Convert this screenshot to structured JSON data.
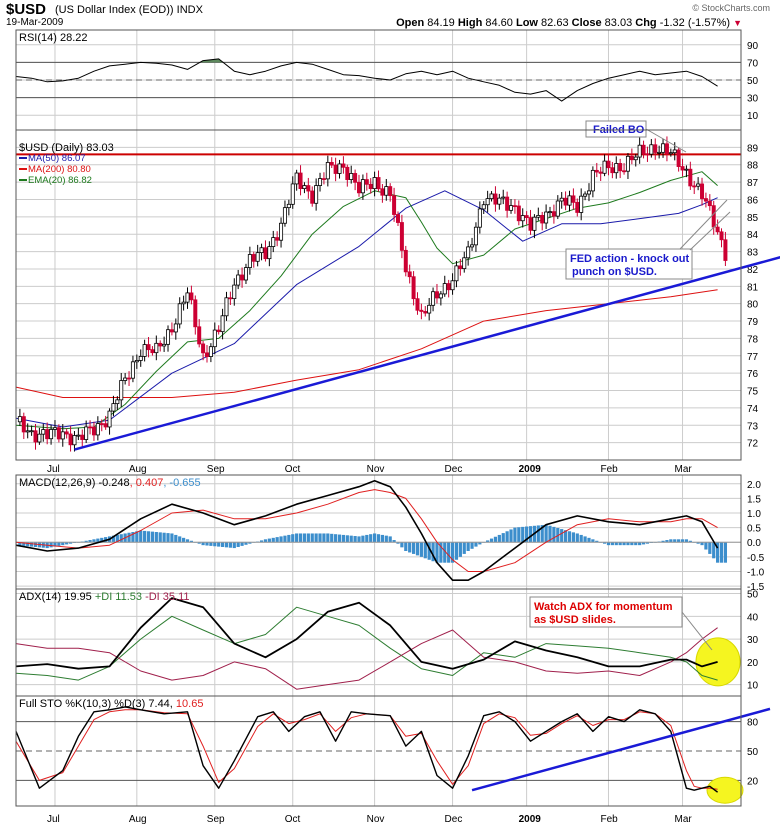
{
  "header": {
    "symbol": "$USD",
    "description": "(US Dollar Index (EOD))",
    "exchange": "INDX",
    "date": "19-Mar-2009",
    "credit": "© StockCharts.com",
    "open_label": "Open",
    "open": "84.19",
    "high_label": "High",
    "high": "84.60",
    "low_label": "Low",
    "low": "82.63",
    "close_label": "Close",
    "close": "83.03",
    "chg_label": "Chg",
    "chg": "-1.32 (-1.57%)"
  },
  "colors": {
    "price_up": "#000000",
    "price_down": "#cc0033",
    "ma50": "#1a1aaa",
    "ma200": "#dd1111",
    "ema20": "#1e7a1e",
    "trendline": "#1a1ad6",
    "resistance": "#cc0000",
    "grid": "#cccccc",
    "histogram": "#3c8ecc",
    "plus_di": "#2e7d32",
    "minus_di": "#a0204c",
    "highlight": "#f5f520",
    "rsi_fill": "#5e8a5e"
  },
  "chart_data": [
    {
      "type": "line",
      "name": "RSI",
      "title": "RSI(14) 28.22",
      "ylim": [
        0,
        100
      ],
      "ticks": [
        90,
        70,
        50,
        30,
        10
      ],
      "guides": [
        70,
        30
      ],
      "x": [
        0,
        4,
        8,
        12,
        16,
        20,
        24,
        28,
        32,
        36,
        40,
        44,
        48,
        52,
        56,
        60,
        64,
        68,
        72,
        76,
        80,
        84,
        88,
        92,
        96,
        100,
        104,
        108,
        112,
        116,
        120,
        124,
        128,
        132,
        136,
        140,
        144,
        148,
        152,
        156,
        160,
        164,
        168,
        172,
        176,
        180
      ],
      "values": [
        54,
        52,
        48,
        49,
        52,
        60,
        66,
        68,
        70,
        69,
        67,
        62,
        72,
        74,
        60,
        56,
        60,
        66,
        70,
        68,
        62,
        56,
        55,
        52,
        50,
        57,
        60,
        56,
        60,
        52,
        48,
        44,
        36,
        34,
        38,
        26,
        38,
        46,
        52,
        56,
        60,
        56,
        58,
        60,
        54,
        43
      ],
      "last": 28
    },
    {
      "type": "candlestick",
      "name": "Price",
      "title": "$USD (Daily) 83.03",
      "ylim": [
        71,
        90
      ],
      "ticks": [
        72,
        73,
        74,
        75,
        76,
        77,
        78,
        79,
        80,
        81,
        82,
        83,
        84,
        85,
        86,
        87,
        88,
        89
      ],
      "x_labels": [
        {
          "t": "Jul",
          "x": 10
        },
        {
          "t": "Aug",
          "x": 31
        },
        {
          "t": "Sep",
          "x": 51
        },
        {
          "t": "Oct",
          "x": 71
        },
        {
          "t": "Nov",
          "x": 92
        },
        {
          "t": "Dec",
          "x": 112
        },
        {
          "t": "2009",
          "x": 131
        },
        {
          "t": "Feb",
          "x": 152
        },
        {
          "t": "Mar",
          "x": 171
        }
      ],
      "close_x": [
        0,
        4,
        8,
        12,
        16,
        20,
        24,
        28,
        32,
        36,
        40,
        44,
        48,
        52,
        56,
        60,
        64,
        68,
        72,
        76,
        80,
        84,
        88,
        92,
        96,
        100,
        104,
        108,
        112,
        116,
        120,
        124,
        128,
        132,
        136,
        140,
        144,
        148,
        152,
        156,
        160,
        164,
        168,
        172,
        176,
        180,
        182
      ],
      "close": [
        73.2,
        72.6,
        72.4,
        72.6,
        72.2,
        72.8,
        73.6,
        75.6,
        77.4,
        77.2,
        78.7,
        80.6,
        77.0,
        78.5,
        81.2,
        82.5,
        82.9,
        84.6,
        87.2,
        86.3,
        87.7,
        88.0,
        86.5,
        87.1,
        86.2,
        82.1,
        79.2,
        80.5,
        81.5,
        82.8,
        86.2,
        85.8,
        85.6,
        84.4,
        85.2,
        85.9,
        85.6,
        87.4,
        87.8,
        88.0,
        88.6,
        89.1,
        88.6,
        87.6,
        86.2,
        84.2,
        83.0
      ],
      "ma50_x": [
        0,
        12,
        24,
        40,
        56,
        72,
        88,
        100,
        110,
        120,
        130,
        140,
        150,
        160,
        170,
        176,
        180
      ],
      "ma50": [
        73.4,
        72.9,
        73.3,
        76.0,
        77.7,
        81.1,
        83.3,
        85.5,
        86.5,
        85.4,
        83.6,
        84.6,
        84.6,
        84.9,
        85.2,
        85.7,
        86.1
      ],
      "ma200_x": [
        0,
        12,
        24,
        40,
        56,
        72,
        88,
        104,
        120,
        136,
        152,
        168,
        180
      ],
      "ma200": [
        75.2,
        74.6,
        74.6,
        74.6,
        74.9,
        75.6,
        76.2,
        77.4,
        79.0,
        79.6,
        80.0,
        80.4,
        80.8
      ],
      "ema20_x": [
        0,
        12,
        20,
        28,
        36,
        44,
        52,
        60,
        68,
        76,
        84,
        92,
        100,
        104,
        108,
        112,
        120,
        128,
        136,
        144,
        152,
        160,
        168,
        176,
        180
      ],
      "ema20": [
        73.0,
        72.8,
        72.9,
        74.2,
        76.1,
        77.8,
        78.0,
        79.6,
        81.6,
        84.0,
        85.6,
        86.5,
        86.1,
        84.7,
        83.2,
        82.3,
        82.8,
        84.3,
        84.9,
        85.5,
        85.8,
        86.4,
        87.1,
        87.6,
        86.8
      ],
      "annotations": [
        "Failed BO",
        "FED action - knock out",
        "punch on $USD."
      ],
      "legend": [
        "MA(50) 86.07",
        "MA(200) 80.80",
        "EMA(20) 86.82"
      ]
    },
    {
      "type": "line",
      "name": "MACD",
      "title_parts": [
        "MACD(12,26,9)",
        "-0.248",
        "0.407",
        "-0.655"
      ],
      "ylim": [
        -1.6,
        2.3
      ],
      "ticks": [
        2.0,
        1.5,
        1.0,
        0.5,
        0.0,
        -0.5,
        -1.0,
        -1.5
      ],
      "x": [
        0,
        8,
        16,
        24,
        32,
        40,
        48,
        56,
        64,
        72,
        80,
        88,
        92,
        96,
        100,
        104,
        108,
        112,
        116,
        120,
        128,
        136,
        144,
        152,
        160,
        168,
        172,
        176,
        180
      ],
      "macd": [
        -0.1,
        -0.3,
        -0.2,
        0.1,
        0.8,
        1.3,
        1.0,
        0.6,
        0.9,
        1.3,
        1.6,
        1.9,
        2.1,
        1.9,
        1.2,
        0.3,
        -0.7,
        -1.3,
        -1.3,
        -1.0,
        -0.2,
        0.6,
        0.9,
        0.7,
        0.6,
        0.8,
        0.9,
        0.7,
        -0.2
      ],
      "signal": [
        0.0,
        -0.1,
        -0.2,
        -0.1,
        0.4,
        1.0,
        1.1,
        0.8,
        0.8,
        1.0,
        1.3,
        1.7,
        1.8,
        1.7,
        1.5,
        0.8,
        0.0,
        -0.6,
        -1.0,
        -1.0,
        -0.7,
        0.0,
        0.6,
        0.8,
        0.7,
        0.7,
        0.8,
        0.8,
        0.5
      ]
    },
    {
      "type": "line",
      "name": "ADX",
      "title_parts": [
        "ADX(14) 19.95",
        "+DI 11.53",
        "-DI 35.11"
      ],
      "ylim": [
        5,
        52
      ],
      "ticks": [
        50,
        40,
        30,
        20,
        10
      ],
      "annotation": [
        "Watch ADX for momentum",
        "as $USD slides."
      ],
      "x": [
        0,
        8,
        16,
        24,
        32,
        40,
        48,
        56,
        64,
        72,
        80,
        88,
        96,
        104,
        112,
        120,
        128,
        136,
        144,
        152,
        160,
        168,
        172,
        176,
        180
      ],
      "adx": [
        18,
        19,
        17,
        18,
        35,
        48,
        44,
        28,
        22,
        30,
        42,
        46,
        36,
        20,
        17,
        21,
        29,
        25,
        22,
        18,
        18,
        21,
        21,
        18,
        20
      ],
      "plus_di": [
        15,
        14,
        12,
        18,
        30,
        40,
        34,
        28,
        32,
        44,
        40,
        36,
        26,
        17,
        14,
        24,
        22,
        28,
        27,
        26,
        24,
        22,
        20,
        14,
        12
      ],
      "minus_di": [
        28,
        26,
        26,
        24,
        16,
        12,
        14,
        20,
        17,
        8,
        10,
        12,
        20,
        28,
        34,
        22,
        20,
        16,
        15,
        16,
        14,
        20,
        24,
        30,
        35
      ]
    },
    {
      "type": "line",
      "name": "Full STO",
      "title_parts": [
        "Full STO %K(10,3) %D(3)",
        "7.44",
        "10.65"
      ],
      "ylim": [
        0,
        100
      ],
      "ticks": [
        80,
        50,
        20
      ],
      "guides": [
        80,
        20
      ],
      "x": [
        0,
        6,
        12,
        16,
        20,
        24,
        28,
        32,
        38,
        44,
        48,
        52,
        56,
        62,
        66,
        70,
        74,
        78,
        82,
        86,
        90,
        96,
        100,
        104,
        108,
        112,
        116,
        120,
        124,
        128,
        132,
        136,
        140,
        144,
        148,
        152,
        156,
        160,
        164,
        168,
        172,
        174,
        176,
        178,
        180
      ],
      "k": [
        70,
        12,
        30,
        65,
        90,
        92,
        95,
        92,
        88,
        90,
        35,
        12,
        40,
        85,
        90,
        70,
        85,
        90,
        60,
        90,
        88,
        86,
        55,
        70,
        25,
        12,
        45,
        86,
        90,
        80,
        60,
        70,
        80,
        88,
        70,
        85,
        80,
        92,
        88,
        70,
        12,
        10,
        12,
        14,
        8
      ],
      "d": [
        60,
        20,
        28,
        55,
        82,
        90,
        92,
        92,
        89,
        88,
        55,
        18,
        32,
        75,
        88,
        78,
        82,
        88,
        70,
        84,
        88,
        86,
        65,
        68,
        40,
        16,
        35,
        78,
        88,
        84,
        66,
        68,
        78,
        86,
        76,
        82,
        82,
        90,
        88,
        76,
        30,
        14,
        12,
        12,
        11
      ]
    }
  ]
}
